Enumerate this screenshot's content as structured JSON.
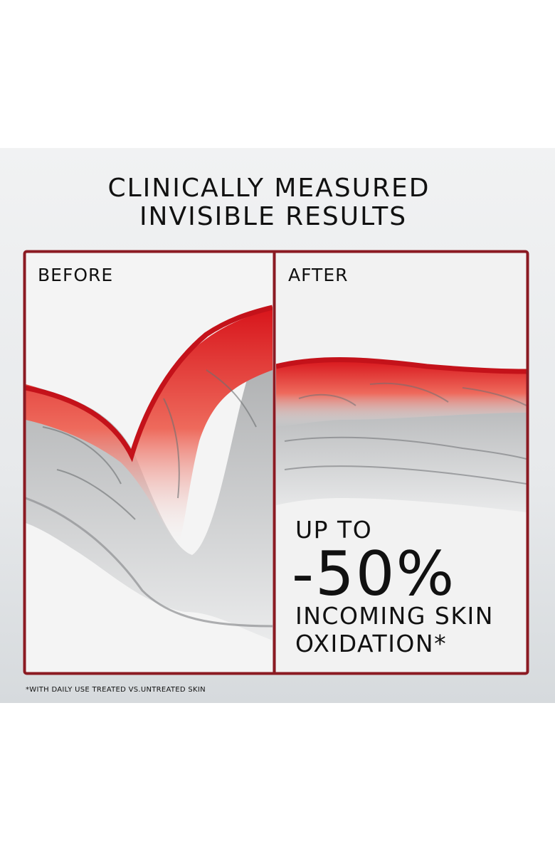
{
  "title": [
    "CLINICALLY MEASURED",
    "INVISIBLE RESULTS"
  ],
  "panels": [
    {
      "label": "BEFORE"
    },
    {
      "label": "AFTER"
    }
  ],
  "claim": [
    "UP TO",
    "-50%",
    "INCOMING SKIN",
    "OXIDATION*"
  ],
  "footnote": "*WITH DAILY USE TREATED VS.UNTREATED SKIN"
}
